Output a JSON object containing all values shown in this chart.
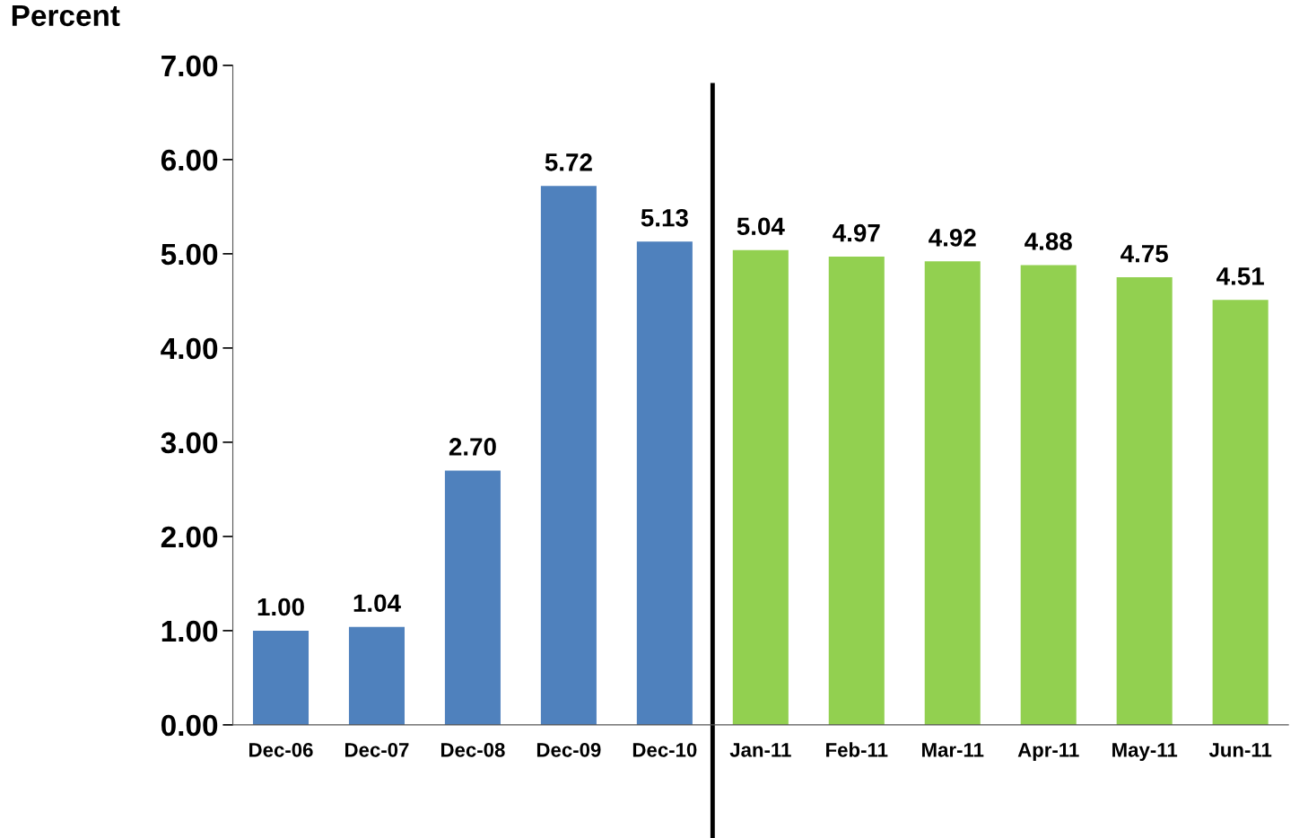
{
  "chart_data": {
    "type": "bar",
    "ylabel": "Percent",
    "categories": [
      "Dec-06",
      "Dec-07",
      "Dec-08",
      "Dec-09",
      "Dec-10",
      "Jan-11",
      "Feb-11",
      "Mar-11",
      "Apr-11",
      "May-11",
      "Jun-11"
    ],
    "values": [
      1.0,
      1.04,
      2.7,
      5.72,
      5.13,
      5.04,
      4.97,
      4.92,
      4.88,
      4.75,
      4.51
    ],
    "value_labels": [
      "1.00",
      "1.04",
      "2.70",
      "5.72",
      "5.13",
      "5.04",
      "4.97",
      "4.92",
      "4.88",
      "4.75",
      "4.51"
    ],
    "colors": [
      "#4f81bd",
      "#4f81bd",
      "#4f81bd",
      "#4f81bd",
      "#4f81bd",
      "#92d050",
      "#92d050",
      "#92d050",
      "#92d050",
      "#92d050",
      "#92d050"
    ],
    "ylim": [
      0,
      7
    ],
    "yticks": [
      {
        "value": 0,
        "label": "0.00"
      },
      {
        "value": 1,
        "label": "1.00"
      },
      {
        "value": 2,
        "label": "2.00"
      },
      {
        "value": 3,
        "label": "3.00"
      },
      {
        "value": 4,
        "label": "4.00"
      },
      {
        "value": 5,
        "label": "5.00"
      },
      {
        "value": 6,
        "label": "6.00"
      },
      {
        "value": 7,
        "label": "7.00"
      }
    ],
    "grid": false,
    "legend": false
  }
}
